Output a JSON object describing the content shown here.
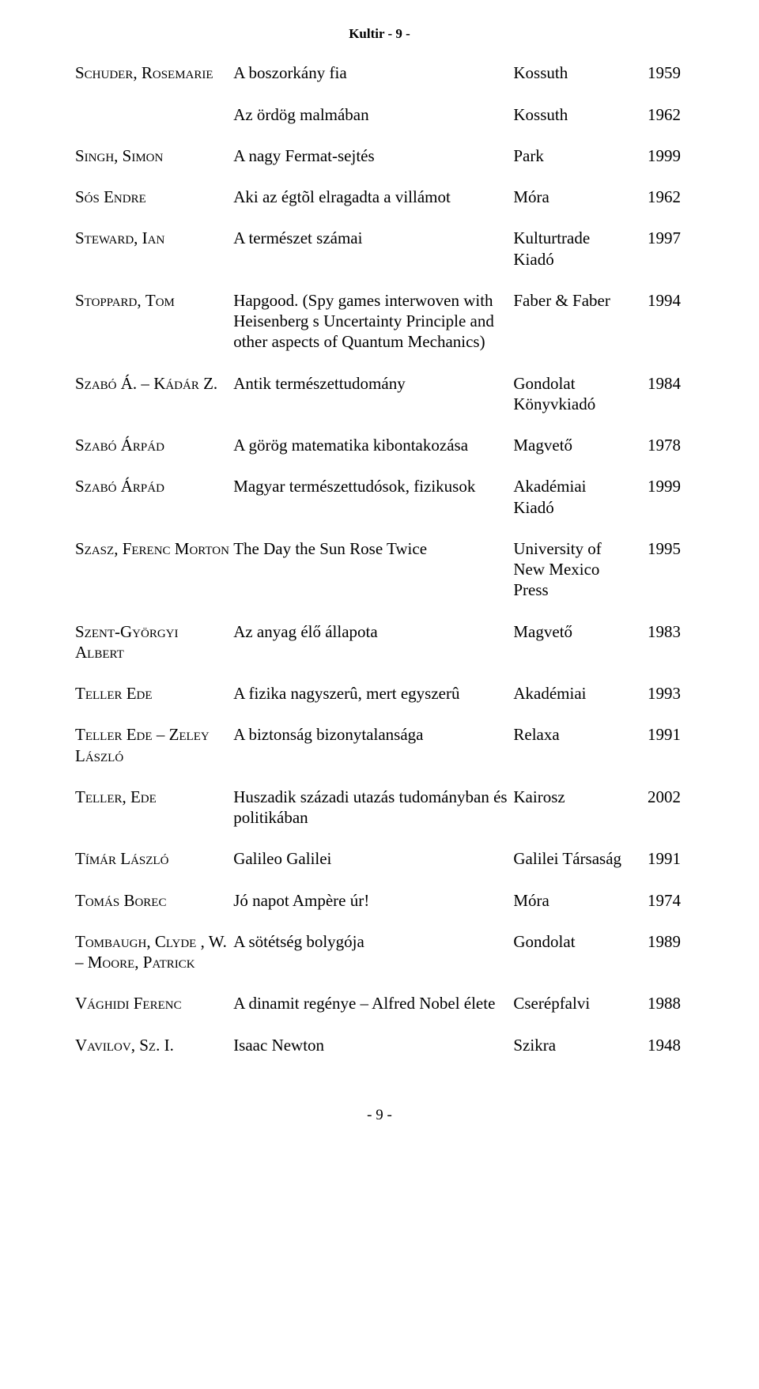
{
  "header": "Kultir - 9 -",
  "footer": "- 9 -",
  "rows": [
    {
      "author": "Schuder, Rosemarie",
      "title": "A boszorkány fia",
      "publisher": "Kossuth",
      "year": "1959"
    },
    {
      "author": "",
      "title": "Az ördög malmában",
      "publisher": "Kossuth",
      "year": "1962"
    },
    {
      "author": "Singh, Simon",
      "title": "A nagy Fermat-sejtés",
      "publisher": "Park",
      "year": "1999"
    },
    {
      "author": "Sós Endre",
      "title": "Aki az égtõl elragadta a villámot",
      "publisher": "Móra",
      "year": "1962"
    },
    {
      "author": "Steward, Ian",
      "title": "A természet számai",
      "publisher": "Kulturtrade Kiadó",
      "year": "1997"
    },
    {
      "author": "Stoppard, Tom",
      "title": "Hapgood. (Spy games interwoven with Heisenberg s Uncertainty Principle and other aspects of Quantum Mechanics)",
      "publisher": "Faber & Faber",
      "year": "1994"
    },
    {
      "author": "Szabó Á. – Kádár Z.",
      "title": "Antik természettudomány",
      "publisher": "Gondolat Könyvkiadó",
      "year": "1984"
    },
    {
      "author": "Szabó Árpád",
      "title": "A görög matematika kibontakozása",
      "publisher": "Magvető",
      "year": "1978"
    },
    {
      "author": "Szabó Árpád",
      "title": "Magyar természettudósok, fizikusok",
      "publisher": "Akadémiai Kiadó",
      "year": "1999"
    },
    {
      "author": "Szasz, Ferenc Morton",
      "title": "The Day the Sun Rose Twice",
      "publisher": "University of New Mexico Press",
      "year": "1995"
    },
    {
      "author": "Szent-Györgyi Albert",
      "title": "Az anyag élő állapota",
      "publisher": "Magvető",
      "year": "1983"
    },
    {
      "author": "Teller Ede",
      "title": "A fizika nagyszerû, mert egyszerû",
      "publisher": "Akadémiai",
      "year": "1993"
    },
    {
      "author": "Teller Ede – Zeley László",
      "title": "A biztonság bizonytalansága",
      "publisher": "Relaxa",
      "year": "1991"
    },
    {
      "author": "Teller, Ede",
      "title": "Huszadik századi utazás tudományban és politikában",
      "publisher": "Kairosz",
      "year": "2002"
    },
    {
      "author": "Tímár László",
      "title": "Galileo Galilei",
      "publisher": "Galilei Társaság",
      "year": "1991"
    },
    {
      "author": "Tomás Borec",
      "title": "Jó napot Ampère úr!",
      "publisher": "Móra",
      "year": "1974"
    },
    {
      "author": "Tombaugh, Clyde , W. – Moore, Patrick",
      "title": "A sötétség bolygója",
      "publisher": "Gondolat",
      "year": "1989"
    },
    {
      "author": "Vághidi Ferenc",
      "title": "A dinamit regénye – Alfred Nobel élete",
      "publisher": "Cserépfalvi",
      "year": "1988"
    },
    {
      "author": "Vavilov, Sz. I.",
      "title": "Isaac Newton",
      "publisher": "Szikra",
      "year": "1948"
    }
  ]
}
